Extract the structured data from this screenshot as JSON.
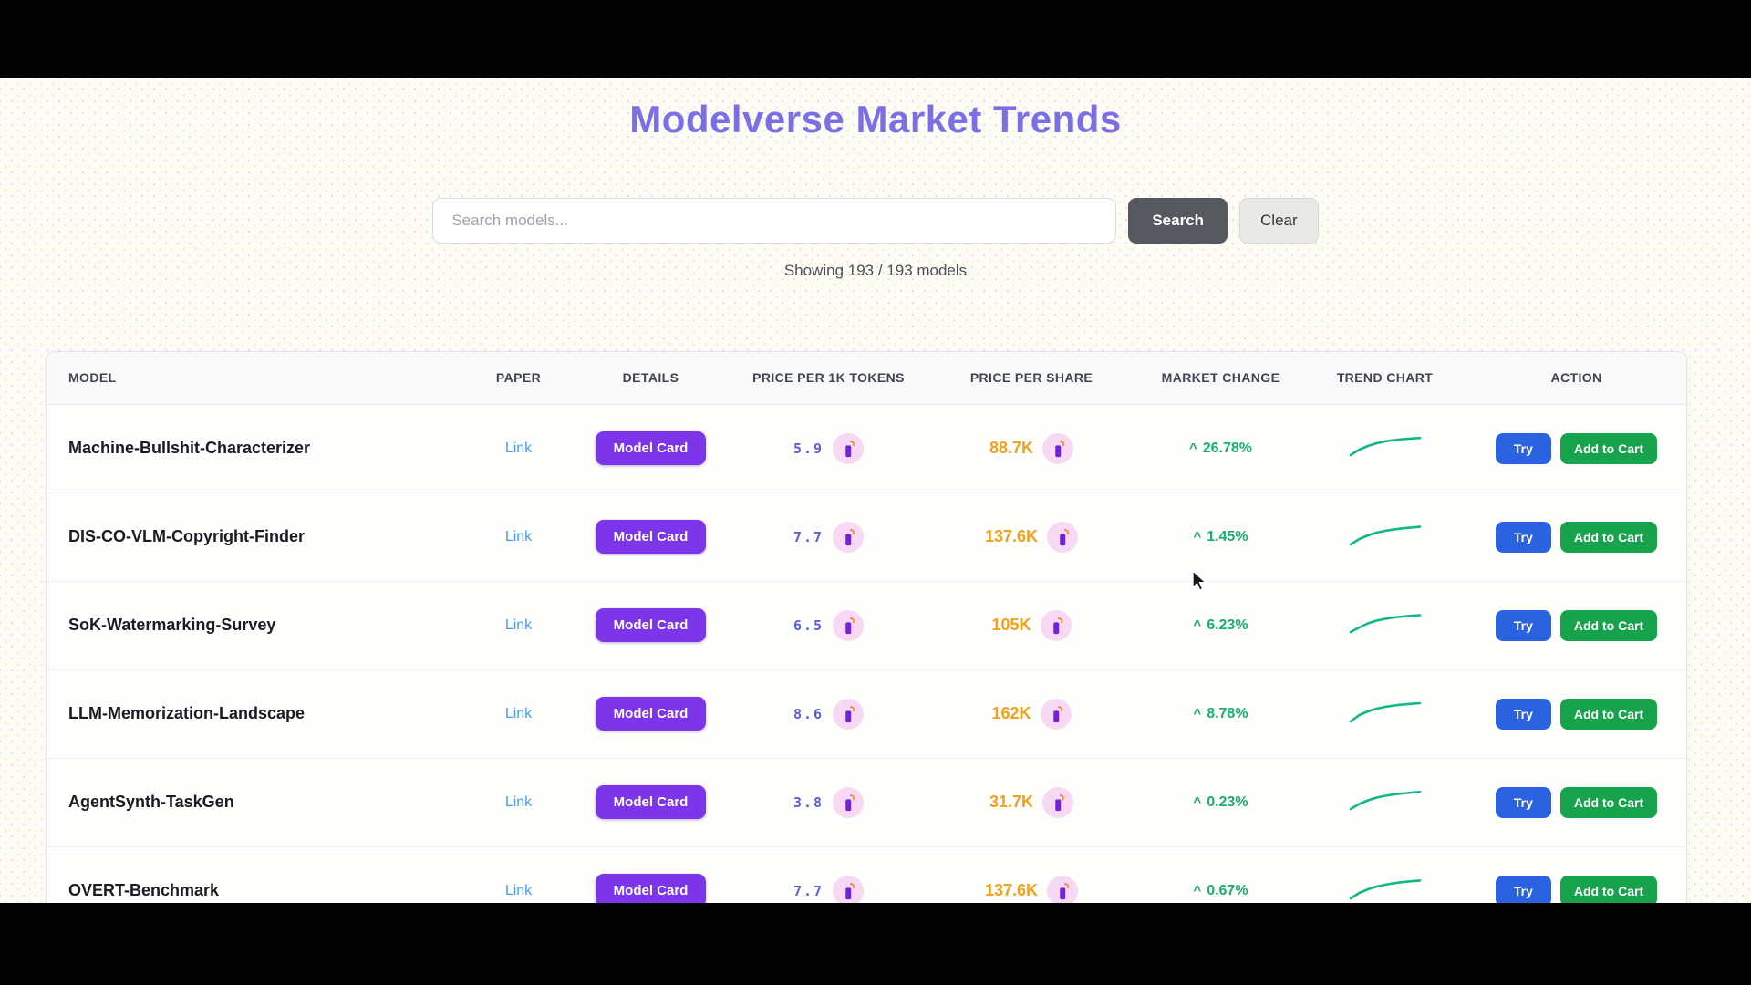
{
  "page": {
    "title": "Modelverse Market Trends",
    "showing_text": "Showing 193 / 193 models"
  },
  "search": {
    "placeholder": "Search models...",
    "search_label": "Search",
    "clear_label": "Clear"
  },
  "table": {
    "columns": [
      "MODEL",
      "PAPER",
      "DETAILS",
      "PRICE PER 1K TOKENS",
      "PRICE PER SHARE",
      "MARKET CHANGE",
      "TREND CHART",
      "ACTION"
    ],
    "paper_link_label": "Link",
    "details_button_label": "Model Card",
    "try_label": "Try",
    "add_to_cart_label": "Add to Cart",
    "up_symbol": "^",
    "rows": [
      {
        "model": "Machine-Bullshit-Characterizer",
        "price_per_1k": "5.9",
        "price_per_share": "88.7K",
        "change": "26.78%",
        "trend": [
          23,
          17,
          13,
          10,
          8,
          6.5,
          5.5,
          4.8,
          4.2
        ]
      },
      {
        "model": "DIS-CO-VLM-Copyright-Finder",
        "price_per_1k": "7.7",
        "price_per_share": "137.6K",
        "change": "1.45%",
        "trend": [
          24,
          18,
          14,
          11,
          9,
          7.5,
          6.3,
          5.4,
          4.6
        ]
      },
      {
        "model": "SoK-Watermarking-Survey",
        "price_per_1k": "6.5",
        "price_per_share": "105K",
        "change": "6.23%",
        "trend": [
          23,
          18,
          13.5,
          10.5,
          8.5,
          7,
          6,
          5.2,
          4.5
        ]
      },
      {
        "model": "LLM-Memorization-Landscape",
        "price_per_1k": "8.6",
        "price_per_share": "162K",
        "change": "8.78%",
        "trend": [
          24,
          17,
          13,
          10,
          8,
          6.5,
          5.5,
          4.7,
          4
        ]
      },
      {
        "model": "AgentSynth-TaskGen",
        "price_per_1k": "3.8",
        "price_per_share": "31.7K",
        "change": "0.23%",
        "trend": [
          23,
          17.5,
          13.5,
          10.5,
          8.5,
          7,
          6,
          5,
          4.3
        ]
      },
      {
        "model": "OVERT-Benchmark",
        "price_per_1k": "7.7",
        "price_per_share": "137.6K",
        "change": "0.67%",
        "trend": [
          24,
          18,
          14,
          11,
          9,
          7.3,
          6.1,
          5.2,
          4.4
        ]
      }
    ]
  },
  "colors": {
    "title_purple": "#7b6fe6",
    "link_blue": "#4a9ded",
    "model_card_purple": "#7c35e8",
    "price_token_indigo": "#5a61d9",
    "price_share_amber": "#f0a11d",
    "change_green": "#16b072",
    "trend_green": "#10b981",
    "try_blue": "#2a62e0",
    "cart_green": "#17a24c",
    "search_button_gray": "#55595f"
  }
}
